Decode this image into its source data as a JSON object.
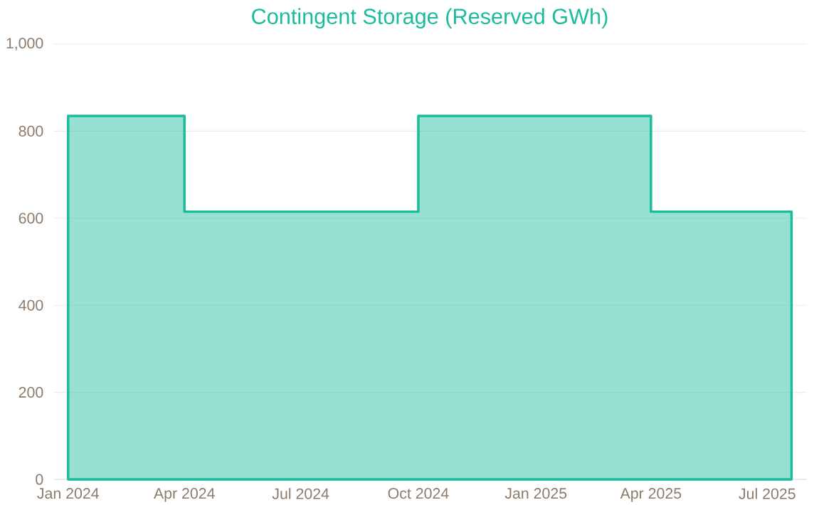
{
  "chart_data": {
    "type": "step",
    "title": "Contingent Storage (Reserved GWh)",
    "x": [
      "2024-01-01",
      "2024-04-01",
      "2024-10-01",
      "2025-04-01",
      "2025-07-20"
    ],
    "series": [
      {
        "type": "area",
        "color": "#1abc9c",
        "values": [
          835,
          615,
          835,
          615,
          615
        ]
      }
    ],
    "xlim": [
      "2023-12-21",
      "2025-08-01"
    ],
    "xticks": [
      {
        "value": "2024-01-01",
        "label": "Jan 2024"
      },
      {
        "value": "2024-04-01",
        "label": "Apr 2024"
      },
      {
        "value": "2024-07-01",
        "label": "Jul 2024"
      },
      {
        "value": "2024-10-01",
        "label": "Oct 2024"
      },
      {
        "value": "2025-01-01",
        "label": "Jan 2025"
      },
      {
        "value": "2025-04-01",
        "label": "Apr 2025"
      },
      {
        "value": "2025-07-01",
        "label": "Jul 2025"
      }
    ],
    "ylim": [
      0,
      1000
    ],
    "yticks": [
      0,
      200,
      400,
      600,
      800,
      {
        "value": 1000,
        "label": "1,000"
      }
    ],
    "grid": "y"
  }
}
